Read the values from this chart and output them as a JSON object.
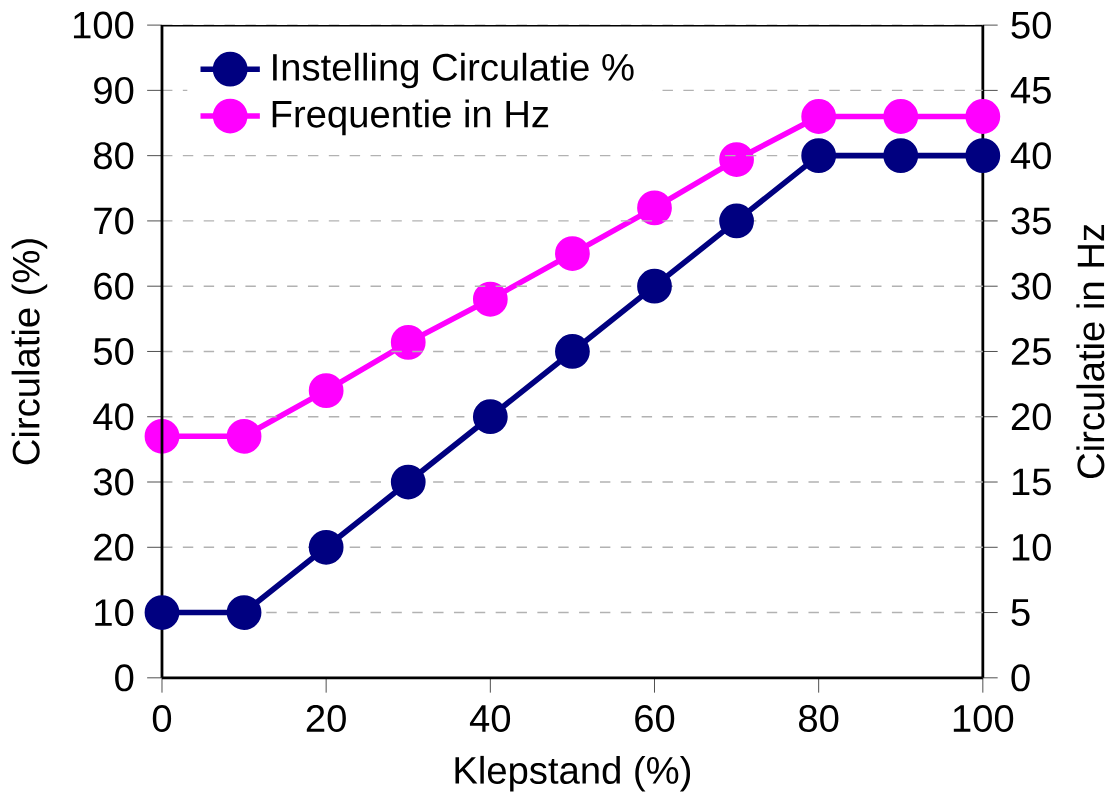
{
  "chart_data": {
    "type": "line",
    "xlabel": "Klepstand (%)",
    "ylabel": "Circulatie (%)",
    "y2label": "Circulatie in Hz",
    "x": [
      0,
      10,
      20,
      30,
      40,
      50,
      60,
      70,
      80,
      90,
      100
    ],
    "series": [
      {
        "name": "Instelling Circulatie %",
        "color": "#000080",
        "values": [
          10,
          10,
          20,
          30,
          40,
          50,
          60,
          70,
          80,
          80,
          80
        ]
      },
      {
        "name": "Frequentie in Hz",
        "color": "#ff00ff",
        "axis": "y2",
        "values": [
          18.5,
          18.5,
          22,
          25.7,
          29,
          32.5,
          36,
          39.7,
          43,
          43,
          43
        ]
      }
    ],
    "xlim": [
      0,
      100
    ],
    "xticks": [
      0,
      20,
      40,
      60,
      80,
      100
    ],
    "ylim": [
      0,
      100
    ],
    "yticks": [
      0,
      10,
      20,
      30,
      40,
      50,
      60,
      70,
      80,
      90,
      100
    ],
    "y2lim": [
      0,
      50
    ],
    "y2ticks": [
      0,
      5,
      10,
      15,
      20,
      25,
      30,
      35,
      40,
      45,
      50
    ],
    "grid": "y",
    "legend": "top left",
    "marker": "circle",
    "line_style": "solid"
  }
}
